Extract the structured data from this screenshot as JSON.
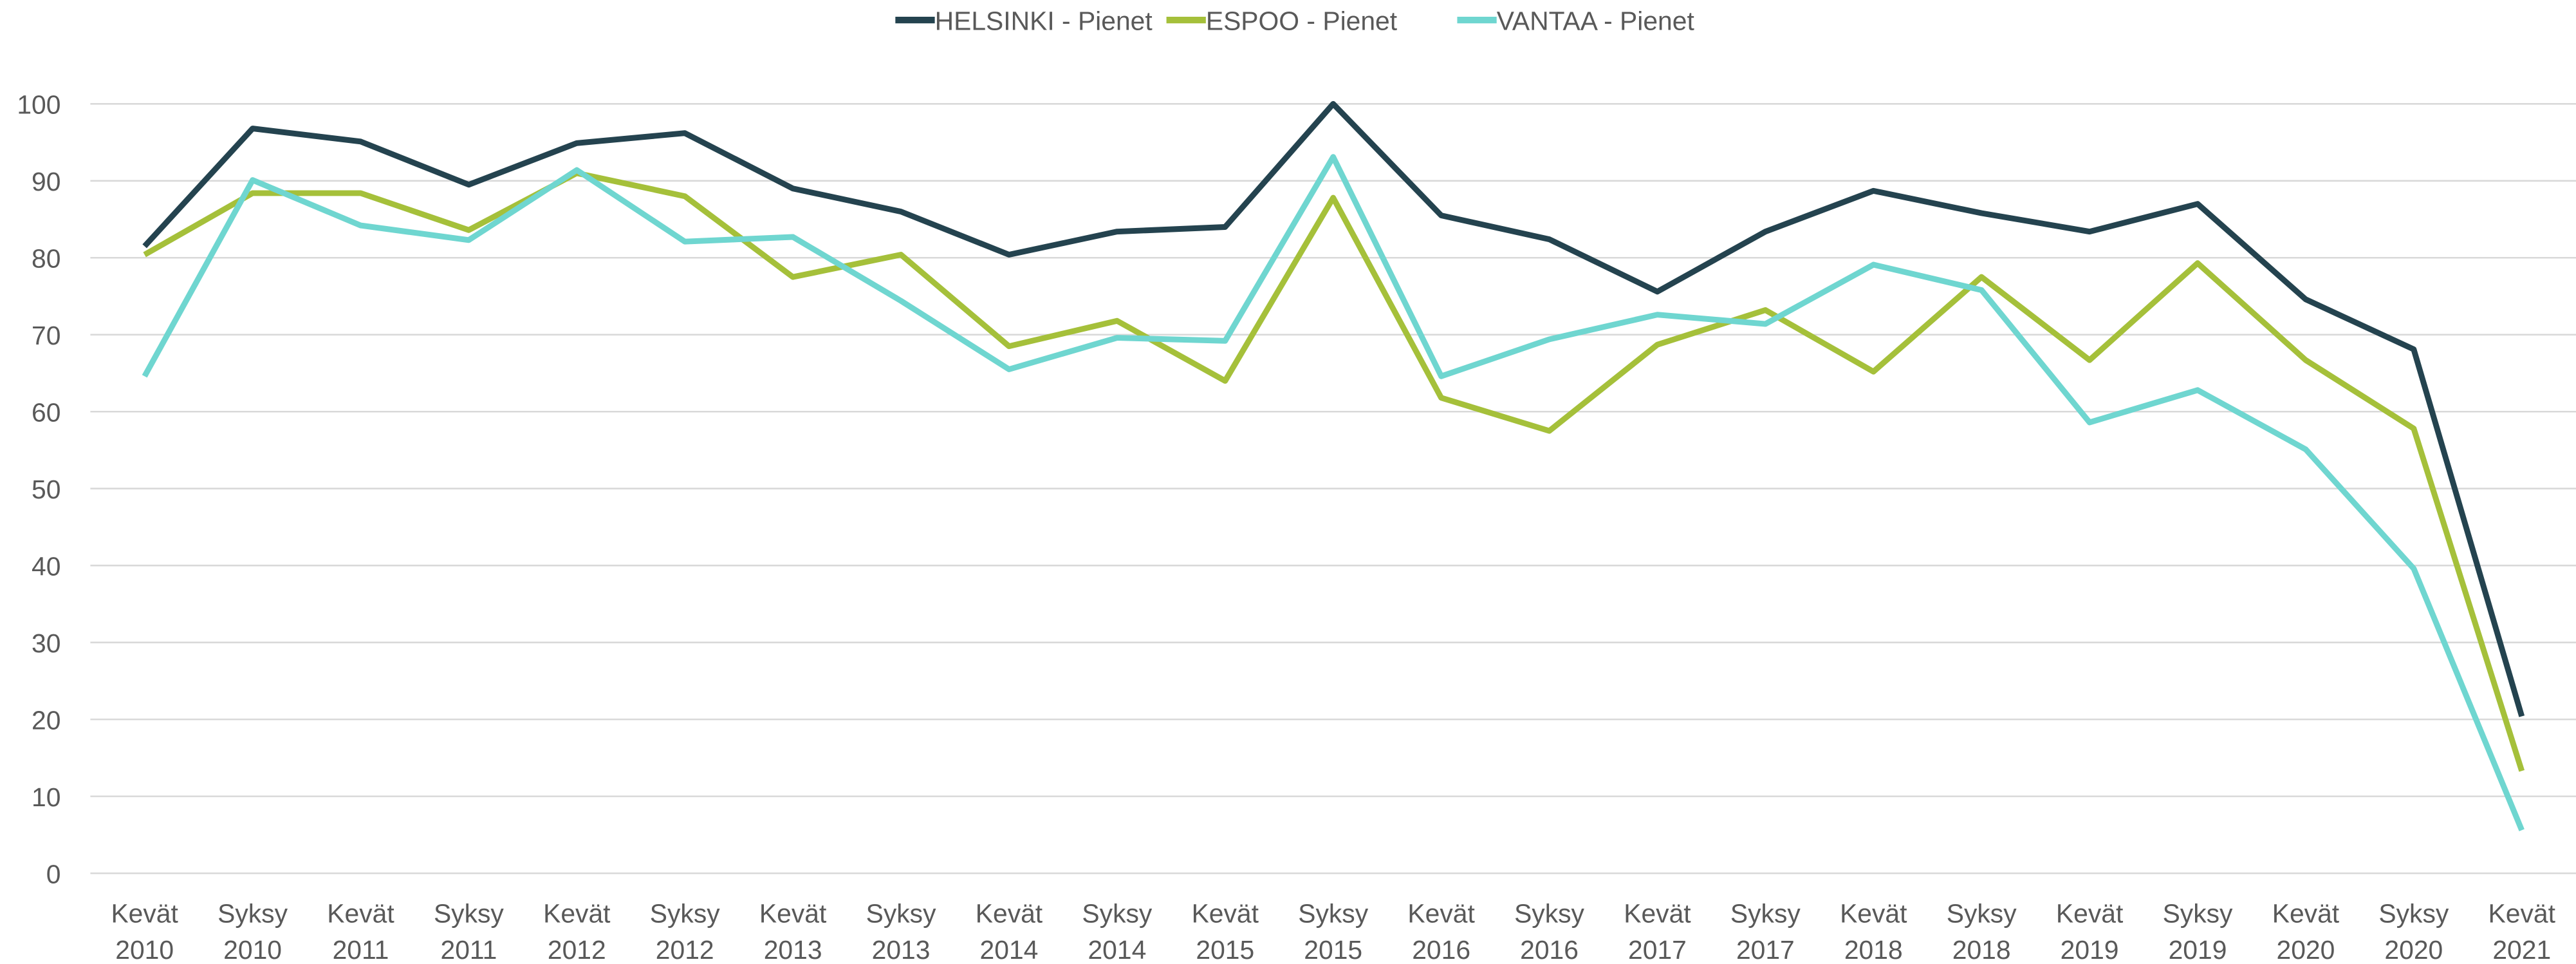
{
  "chart_data": {
    "type": "line",
    "categories": [
      "Kevät 2010",
      "Syksy 2010",
      "Kevät 2011",
      "Syksy 2011",
      "Kevät 2012",
      "Syksy 2012",
      "Kevät 2013",
      "Syksy 2013",
      "Kevät 2014",
      "Syksy 2014",
      "Kevät 2015",
      "Syksy 2015",
      "Kevät 2016",
      "Syksy 2016",
      "Kevät 2017",
      "Syksy 2017",
      "Kevät 2018",
      "Syksy 2018",
      "Kevät 2019",
      "Syksy 2019",
      "Kevät 2020",
      "Syksy 2020",
      "Kevät 2021"
    ],
    "series": [
      {
        "name": "HELSINKI - Pienet",
        "color": "#24434f",
        "values": [
          81.5,
          96.8,
          95.1,
          89.5,
          94.9,
          96.2,
          89,
          86,
          80.4,
          83.4,
          84,
          100,
          85.5,
          82.4,
          75.6,
          83.4,
          88.7,
          85.8,
          83.4,
          87,
          74.6,
          68.1,
          20.4
        ]
      },
      {
        "name": "ESPOO - Pienet",
        "color": "#a5c03a",
        "values": [
          80.4,
          88.4,
          88.4,
          83.6,
          91,
          88,
          77.5,
          80.4,
          68.5,
          71.8,
          64,
          87.8,
          61.8,
          57.5,
          68.7,
          73.2,
          65.2,
          77.5,
          66.7,
          79.3,
          66.7,
          57.8,
          13.3
        ]
      },
      {
        "name": "VANTAA - Pienet",
        "color": "#6fd6d0",
        "values": [
          64.6,
          90.1,
          84.2,
          82.3,
          91.4,
          82.1,
          82.7,
          74.4,
          65.5,
          69.6,
          69.2,
          93.1,
          64.6,
          69.4,
          72.6,
          71.4,
          79.1,
          75.8,
          58.6,
          62.8,
          55.1,
          39.6,
          5.6
        ]
      }
    ],
    "ylim": [
      0,
      100
    ],
    "yticks": [
      0,
      10,
      20,
      30,
      40,
      50,
      60,
      70,
      80,
      90,
      100
    ],
    "grid": true,
    "legend": "top"
  }
}
